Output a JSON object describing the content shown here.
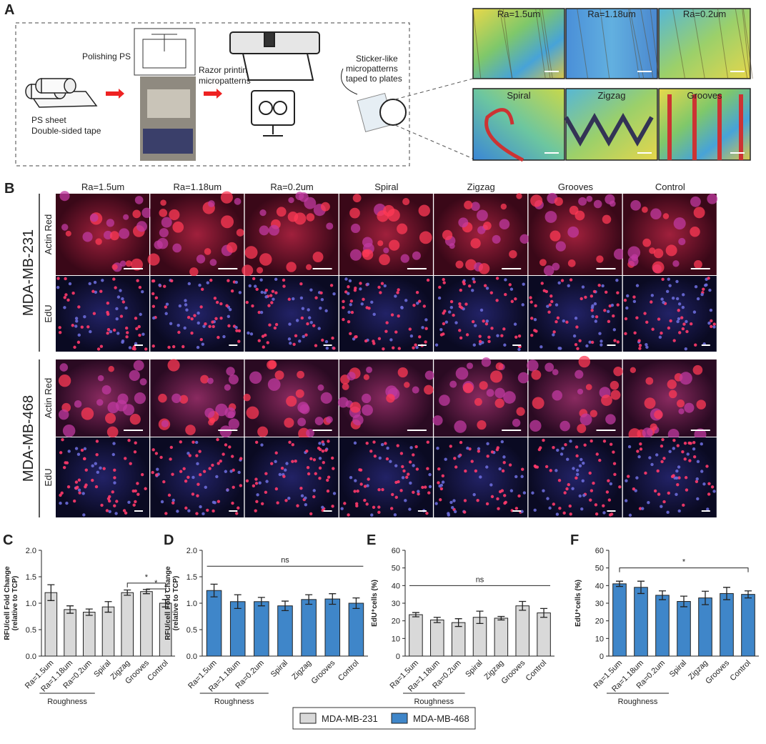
{
  "panel_a": {
    "letter": "A",
    "polishing": "Polishing PS",
    "sheet": [
      "PS sheet",
      "Double-sided tape"
    ],
    "razor": [
      "Razor printing",
      "micropatterns"
    ],
    "sticker": [
      "Sticker-like",
      "micropatterns",
      "taped to plates"
    ],
    "images": [
      "Ra=1.5um",
      "Ra=1.18um",
      "Ra=0.2um",
      "Spiral",
      "Zigzag",
      "Grooves"
    ]
  },
  "panel_b": {
    "letter": "B",
    "columns": [
      "Ra=1.5um",
      "Ra=1.18um",
      "Ra=0.2um",
      "Spiral",
      "Zigzag",
      "Grooves",
      "Control"
    ],
    "groups": [
      "MDA-MB-231",
      "MDA-MB-468"
    ],
    "rows": [
      "Actin Red",
      "EdU"
    ]
  },
  "legend": [
    {
      "name": "MDA-MB-231",
      "color": "#d9d9d9"
    },
    {
      "name": "MDA-MB-468",
      "color": "#3f86c9"
    }
  ],
  "chart_data": [
    {
      "type": "bar",
      "letter": "C",
      "ylabel": [
        "RFU/cell Fold Change",
        "(relative to TCP)"
      ],
      "color": "#d9d9d9",
      "categories": [
        "Ra=1.5um",
        "Ra=1.18um",
        "Ra=0.2um",
        "Spiral",
        "Zigzag",
        "Grooves",
        "Control"
      ],
      "values": [
        1.2,
        0.88,
        0.83,
        0.93,
        1.2,
        1.22,
        1.0
      ],
      "errors": [
        0.15,
        0.07,
        0.06,
        0.1,
        0.05,
        0.04,
        0.07
      ],
      "ylim": [
        0,
        2
      ],
      "yticks": [
        {
          "value": 0,
          "label": "0.0"
        },
        {
          "value": 0.5,
          "label": "0.5"
        },
        {
          "value": 1,
          "label": "1.0"
        },
        {
          "value": 1.5,
          "label": "1.5"
        },
        {
          "value": 2,
          "label": "2.0"
        }
      ],
      "brackets": [
        {
          "from": "Zigzag",
          "to": "Control",
          "y": 1.38,
          "label": "*"
        },
        {
          "from": "Grooves",
          "to": "Control",
          "y": 1.27,
          "label": "*"
        }
      ],
      "group": {
        "label": "Roughness",
        "from": "Ra=1.5um",
        "to": "Ra=0.2um"
      }
    },
    {
      "type": "bar",
      "letter": "D",
      "ylabel": [
        "RFU/cell Fold Change",
        "(relative to TCP)"
      ],
      "color": "#3f86c9",
      "categories": [
        "Ra=1.5um",
        "Ra=1.18um",
        "Ra=0.2um",
        "Spiral",
        "Zigzag",
        "Grooves",
        "Control"
      ],
      "values": [
        1.24,
        1.03,
        1.03,
        0.95,
        1.07,
        1.08,
        1.0
      ],
      "errors": [
        0.12,
        0.13,
        0.08,
        0.09,
        0.09,
        0.1,
        0.1
      ],
      "ylim": [
        0,
        2
      ],
      "yticks": [
        {
          "value": 0,
          "label": "0.0"
        },
        {
          "value": 0.5,
          "label": "0.5"
        },
        {
          "value": 1,
          "label": "1.0"
        },
        {
          "value": 1.5,
          "label": "1.5"
        },
        {
          "value": 2,
          "label": "2.0"
        }
      ],
      "brackets": [
        {
          "from": "Ra=1.5um",
          "to": "Control",
          "y": 1.7,
          "label": "ns",
          "flat": true
        }
      ],
      "group": {
        "label": "Roughness",
        "from": "Ra=1.5um",
        "to": "Ra=0.2um"
      }
    },
    {
      "type": "bar",
      "letter": "E",
      "ylabel": [
        "EdU⁺cells (%)"
      ],
      "color": "#d9d9d9",
      "categories": [
        "Ra=1.5um",
        "Ra=1.18um",
        "Ra=0.2um",
        "Spiral",
        "Zigzag",
        "Grooves",
        "Control"
      ],
      "values": [
        23.5,
        20.5,
        19,
        22,
        21.5,
        28.5,
        24.5
      ],
      "errors": [
        1.2,
        1.5,
        2.2,
        3.5,
        1,
        2.5,
        2.5
      ],
      "ylim": [
        0,
        60
      ],
      "yticks": [
        0,
        10,
        20,
        30,
        40,
        50,
        60
      ],
      "brackets": [
        {
          "from": "Ra=1.5um",
          "to": "Control",
          "y": 40,
          "label": "ns",
          "flat": true
        }
      ],
      "group": {
        "label": "Roughness",
        "from": "Ra=1.5um",
        "to": "Ra=0.2um"
      }
    },
    {
      "type": "bar",
      "letter": "F",
      "ylabel": [
        "EdU⁺cells (%)"
      ],
      "color": "#3f86c9",
      "categories": [
        "Ra=1.5um",
        "Ra=1.18um",
        "Ra=0.2um",
        "Spiral",
        "Zigzag",
        "Grooves",
        "Control"
      ],
      "values": [
        41,
        39,
        34.5,
        31,
        33,
        35.5,
        35
      ],
      "errors": [
        1.5,
        3.5,
        2.5,
        3,
        3.8,
        3.5,
        2
      ],
      "ylim": [
        0,
        60
      ],
      "yticks": [
        0,
        10,
        20,
        30,
        40,
        50,
        60
      ],
      "brackets": [
        {
          "from": "Ra=1.5um",
          "to": "Control",
          "y": 50,
          "label": "*"
        }
      ],
      "group": {
        "label": "Roughness",
        "from": "Ra=1.5um",
        "to": "Ra=0.2um"
      }
    }
  ]
}
